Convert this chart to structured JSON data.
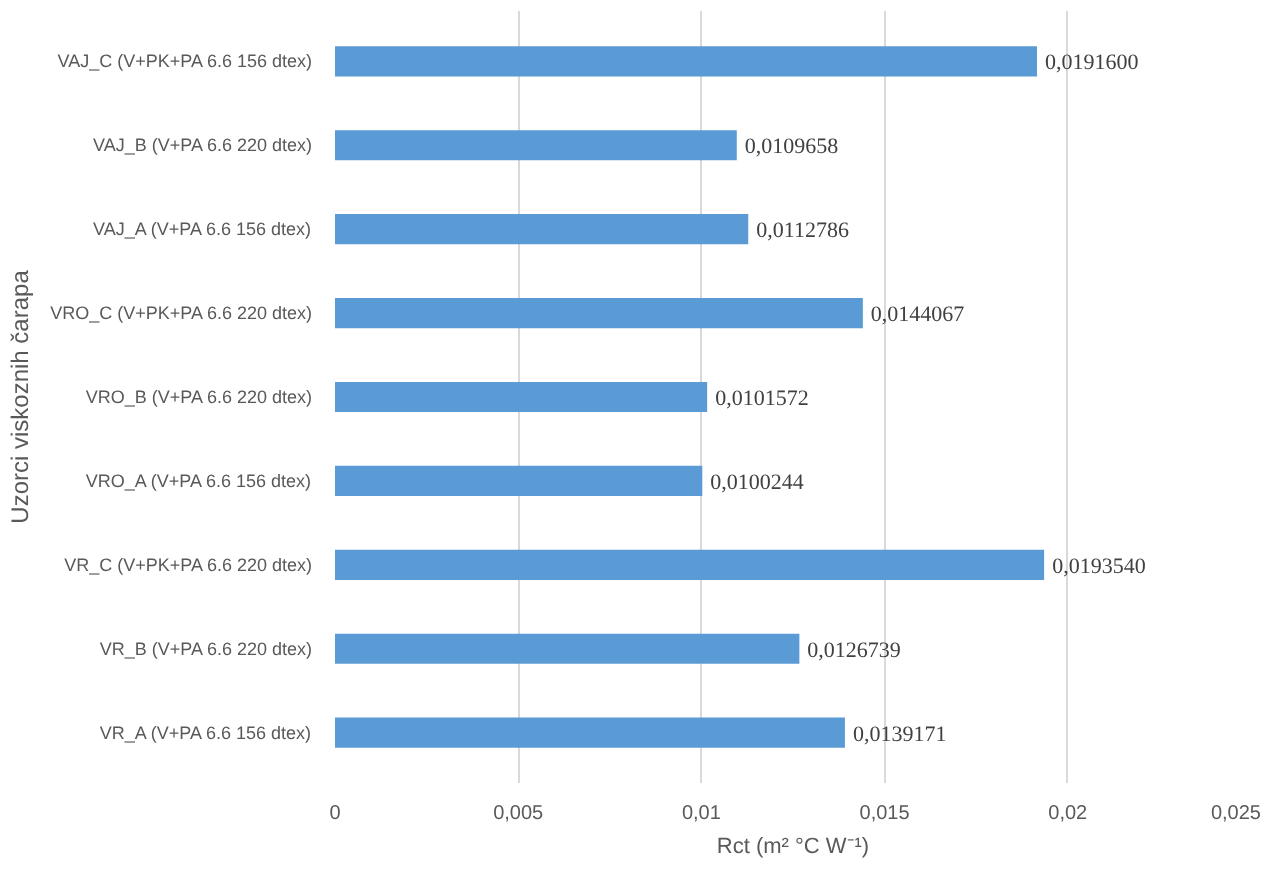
{
  "chart_data": {
    "type": "bar",
    "orientation": "horizontal",
    "xlabel": "Rct (m² °C W⁻¹)",
    "ylabel": "Uzorci viskoznih čarapa",
    "categories": [
      "VAJ_C (V+PK+PA 6.6 156 dtex)",
      "VAJ_B (V+PA 6.6 220 dtex)",
      "VAJ_A (V+PA 6.6 156 dtex)",
      "VRO_C (V+PK+PA 6.6 220 dtex)",
      "VRO_B (V+PA 6.6 220 dtex)",
      "VRO_A (V+PA 6.6 156 dtex)",
      "VR_C (V+PK+PA 6.6 220 dtex)",
      "VR_B (V+PA 6.6 220 dtex)",
      "VR_A (V+PA 6.6 156 dtex)"
    ],
    "values": [
      0.01916,
      0.0109658,
      0.0112786,
      0.0144067,
      0.0101572,
      0.0100244,
      0.019354,
      0.0126739,
      0.0139171
    ],
    "value_labels": [
      "0,0191600",
      "0,0109658",
      "0,0112786",
      "0,0144067",
      "0,0101572",
      "0,0100244",
      "0,0193540",
      "0,0126739",
      "0,0139171"
    ],
    "color": "#5b9bd5",
    "xlim": [
      0,
      0.025
    ],
    "xticks": [
      {
        "value": 0,
        "label": "0"
      },
      {
        "value": 0.005,
        "label": "0,005"
      },
      {
        "value": 0.01,
        "label": "0,01"
      },
      {
        "value": 0.015,
        "label": "0,015"
      },
      {
        "value": 0.02,
        "label": "0,02"
      },
      {
        "value": 0.025,
        "label": "0,025"
      }
    ],
    "grid": "x"
  }
}
